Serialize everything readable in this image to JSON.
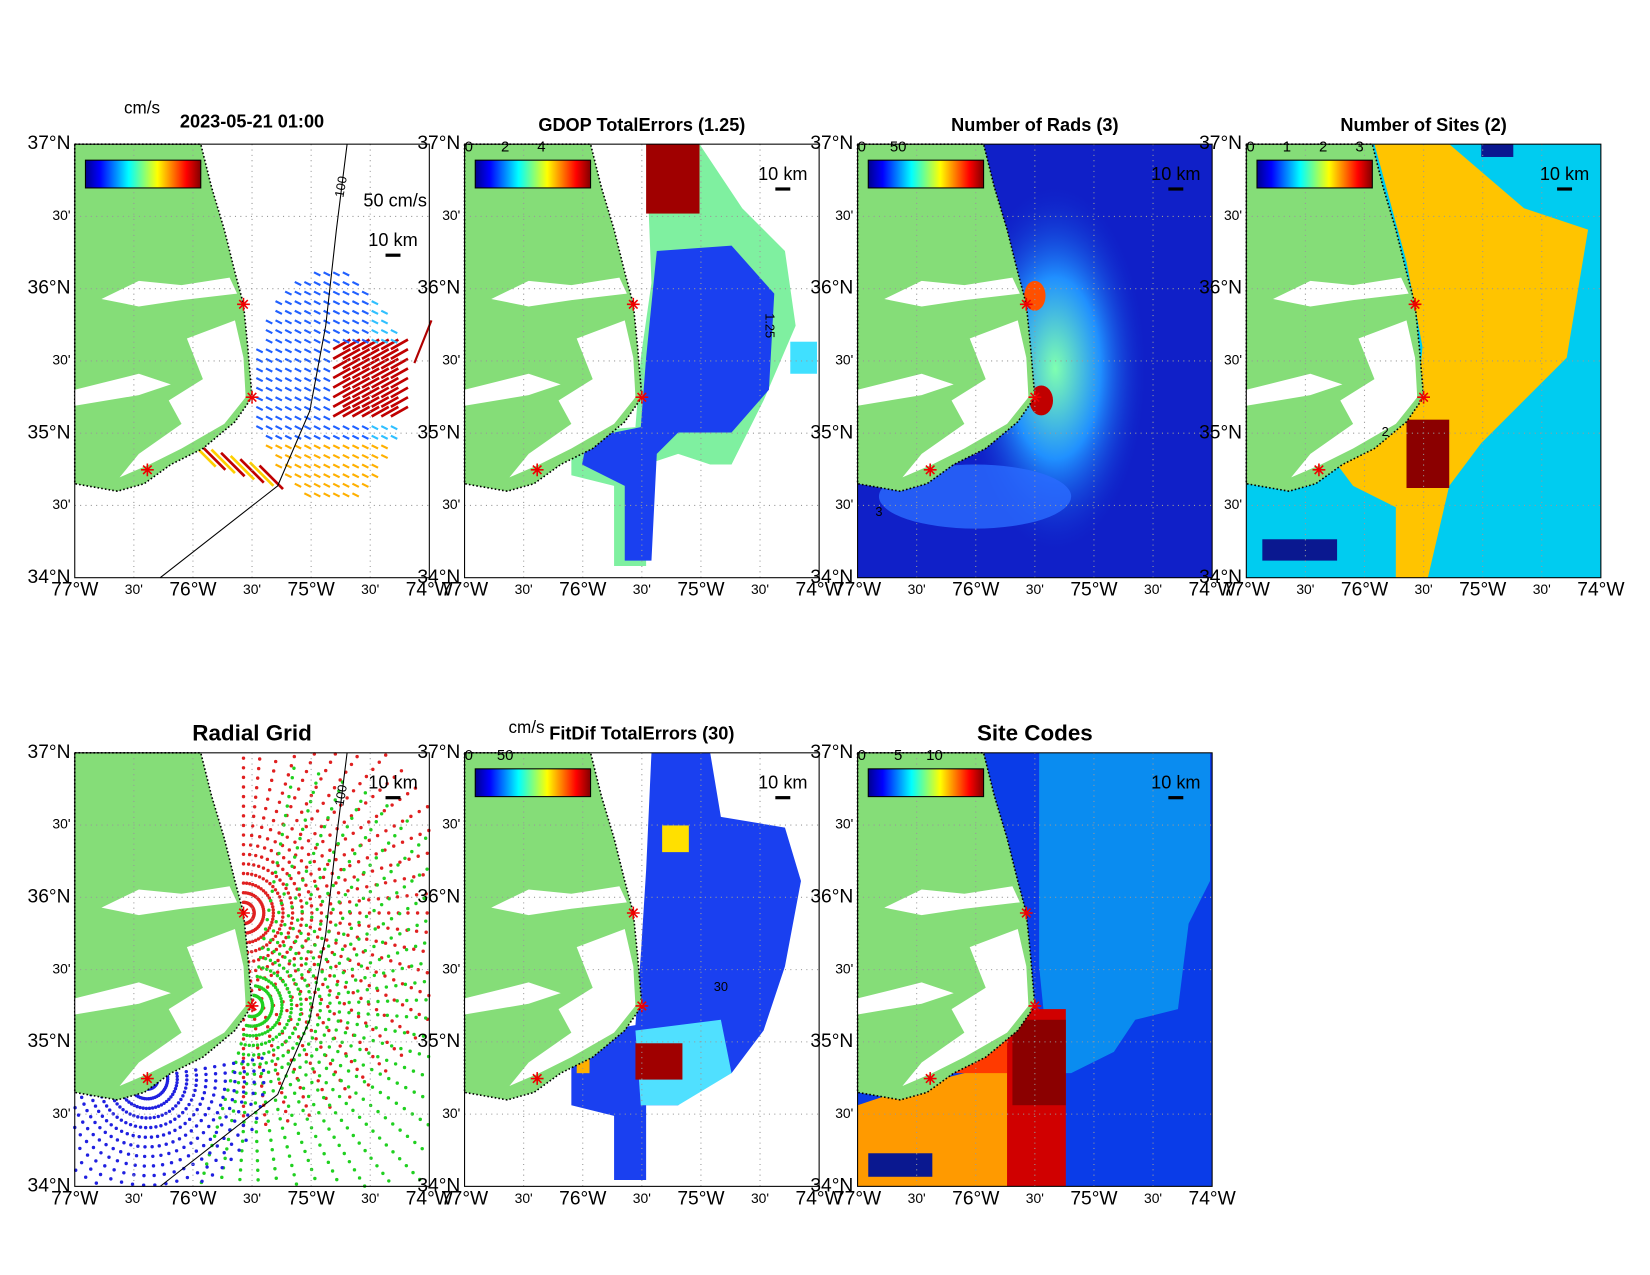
{
  "axes": {
    "y_labels": [
      "37°N",
      "30'",
      "36°N",
      "30'",
      "35°N",
      "30'",
      "34°N"
    ],
    "x_labels": [
      "77°W",
      "30'",
      "76°W",
      "30'",
      "75°W",
      "30'",
      "74°W"
    ]
  },
  "panels": [
    {
      "title": "2023-05-21 01:00",
      "colorbar_unit": "cm/s",
      "speed_scale": "50 cm/s",
      "scale_bar": "10 km",
      "contour_labels": [
        "100"
      ]
    },
    {
      "title": "GDOP TotalErrors (1.25)",
      "colorbar_ticks": [
        "0",
        "2",
        "4"
      ],
      "scale_bar": "10 km",
      "contour_labels": [
        "1.25"
      ]
    },
    {
      "title": "Number of Rads (3)",
      "colorbar_ticks": [
        "0",
        "50"
      ],
      "scale_bar": "10 km",
      "contour_labels": [
        "3"
      ]
    },
    {
      "title": "Number of Sites (2)",
      "colorbar_ticks": [
        "0",
        "1",
        "2",
        "3"
      ],
      "scale_bar": "10 km",
      "contour_labels": [
        "2"
      ]
    },
    {
      "title": "Radial Grid",
      "scale_bar": "10 km",
      "contour_labels": [
        "100"
      ]
    },
    {
      "title": "FitDif TotalErrors (30)",
      "colorbar_unit": "cm/s",
      "colorbar_ticks": [
        "0",
        "50"
      ],
      "scale_bar": "10 km",
      "contour_labels": [
        "30"
      ]
    },
    {
      "title": "Site Codes",
      "colorbar_ticks": [
        "0",
        "5",
        "10"
      ],
      "scale_bar": "10 km"
    }
  ]
}
